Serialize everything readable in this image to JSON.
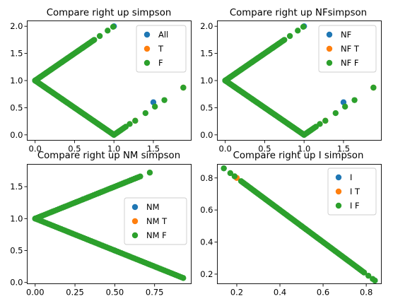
{
  "colors": {
    "c0": "#1f77b4",
    "c1": "#ff7f0e",
    "c2": "#2ca02c"
  },
  "chart_data": [
    {
      "type": "scatter",
      "title": "Compare right up simpson",
      "xlabel": "",
      "ylabel": "",
      "xlim": [
        -0.1,
        1.98
      ],
      "ylim": [
        -0.1,
        2.1
      ],
      "xticks": [
        0.0,
        0.5,
        1.0,
        1.5
      ],
      "xtick_labels": [
        "0.0",
        "0.5",
        "1.0",
        "1.5"
      ],
      "yticks": [
        0.0,
        0.5,
        1.0,
        1.5,
        2.0
      ],
      "ytick_labels": [
        "0.0",
        "0.5",
        "1.0",
        "1.5",
        "2.0"
      ],
      "legend_position": "top-right",
      "series": [
        {
          "name": "All",
          "color": "#1f77b4",
          "points": [
            [
              0.0,
              1.0
            ],
            [
              0.3,
              1.3
            ],
            [
              0.6,
              1.6
            ],
            [
              1.0,
              2.0
            ],
            [
              0.5,
              0.5
            ],
            [
              1.0,
              0.0
            ],
            [
              1.5,
              0.6
            ]
          ]
        },
        {
          "name": "T",
          "color": "#ff7f0e",
          "points": [
            [
              1.27,
              0.26
            ],
            [
              1.88,
              0.87
            ]
          ]
        },
        {
          "name": "F",
          "color": "#2ca02c",
          "segments": [
            {
              "from": [
                0.0,
                1.0
              ],
              "to": [
                0.75,
                1.75
              ],
              "n": 60
            },
            {
              "from": [
                0.0,
                1.0
              ],
              "to": [
                1.0,
                0.0
              ],
              "n": 80
            },
            {
              "from": [
                1.0,
                0.0
              ],
              "to": [
                1.13,
                0.13
              ],
              "n": 10
            }
          ],
          "points": [
            [
              0.82,
              1.82
            ],
            [
              0.92,
              1.92
            ],
            [
              0.99,
              1.99
            ],
            [
              1.15,
              0.15
            ],
            [
              1.2,
              0.2
            ],
            [
              1.27,
              0.26
            ],
            [
              1.4,
              0.4
            ],
            [
              1.52,
              0.52
            ],
            [
              1.64,
              0.64
            ],
            [
              1.88,
              0.87
            ]
          ]
        }
      ]
    },
    {
      "type": "scatter",
      "title": "Compare right up NFsimpson",
      "xlabel": "",
      "ylabel": "",
      "xlim": [
        -0.1,
        1.98
      ],
      "ylim": [
        -0.1,
        2.1
      ],
      "xticks": [
        0.0,
        0.5,
        1.0,
        1.5
      ],
      "xtick_labels": [
        "0.0",
        "0.5",
        "1.0",
        "1.5"
      ],
      "yticks": [
        0.0,
        0.5,
        1.0,
        1.5,
        2.0
      ],
      "ytick_labels": [
        "0.0",
        "0.5",
        "1.0",
        "1.5",
        "2.0"
      ],
      "legend_position": "top-right",
      "series": [
        {
          "name": "NF",
          "color": "#1f77b4",
          "points": [
            [
              0.0,
              1.0
            ],
            [
              0.3,
              1.3
            ],
            [
              0.6,
              1.6
            ],
            [
              1.0,
              2.0
            ],
            [
              0.5,
              0.5
            ],
            [
              1.0,
              0.0
            ],
            [
              1.5,
              0.6
            ]
          ]
        },
        {
          "name": "NF T",
          "color": "#ff7f0e",
          "points": [
            [
              1.27,
              0.26
            ],
            [
              1.88,
              0.87
            ]
          ]
        },
        {
          "name": "NF F",
          "color": "#2ca02c",
          "segments": [
            {
              "from": [
                0.0,
                1.0
              ],
              "to": [
                0.75,
                1.75
              ],
              "n": 60
            },
            {
              "from": [
                0.0,
                1.0
              ],
              "to": [
                1.0,
                0.0
              ],
              "n": 80
            },
            {
              "from": [
                1.0,
                0.0
              ],
              "to": [
                1.13,
                0.13
              ],
              "n": 10
            }
          ],
          "points": [
            [
              0.82,
              1.82
            ],
            [
              0.92,
              1.92
            ],
            [
              0.99,
              1.99
            ],
            [
              1.15,
              0.15
            ],
            [
              1.2,
              0.2
            ],
            [
              1.27,
              0.26
            ],
            [
              1.4,
              0.4
            ],
            [
              1.52,
              0.52
            ],
            [
              1.64,
              0.64
            ],
            [
              1.88,
              0.87
            ]
          ]
        }
      ]
    },
    {
      "type": "scatter",
      "title": "Compare right up NM simpson",
      "xlabel": "",
      "ylabel": "",
      "xlim": [
        -0.05,
        0.98
      ],
      "ylim": [
        -0.02,
        1.85
      ],
      "xticks": [
        0.0,
        0.25,
        0.5,
        0.75
      ],
      "xtick_labels": [
        "0.00",
        "0.25",
        "0.50",
        "0.75"
      ],
      "yticks": [
        0.0,
        0.5,
        1.0,
        1.5
      ],
      "ytick_labels": [
        "0.0",
        "0.5",
        "1.0",
        "1.5"
      ],
      "legend_position": "center-right",
      "series": [
        {
          "name": "NM",
          "color": "#1f77b4",
          "points": [
            [
              0.0,
              1.0
            ],
            [
              0.3,
              1.3
            ],
            [
              0.6,
              1.6
            ],
            [
              0.5,
              0.5
            ]
          ]
        },
        {
          "name": "NM T",
          "color": "#ff7f0e",
          "points": []
        },
        {
          "name": "NM F",
          "color": "#2ca02c",
          "segments": [
            {
              "from": [
                0.0,
                1.0
              ],
              "to": [
                0.66,
                1.66
              ],
              "n": 55
            },
            {
              "from": [
                0.0,
                1.0
              ],
              "to": [
                0.93,
                0.07
              ],
              "n": 80
            }
          ],
          "points": [
            [
              0.72,
              1.72
            ]
          ]
        }
      ]
    },
    {
      "type": "scatter",
      "title": "Compare right up I simpson",
      "xlabel": "",
      "ylabel": "",
      "xlim": [
        0.11,
        0.87
      ],
      "ylim": [
        0.14,
        0.885
      ],
      "xticks": [
        0.2,
        0.4,
        0.6,
        0.8
      ],
      "xtick_labels": [
        "0.2",
        "0.4",
        "0.6",
        "0.8"
      ],
      "yticks": [
        0.2,
        0.4,
        0.6,
        0.8
      ],
      "ytick_labels": [
        "0.2",
        "0.4",
        "0.6",
        "0.8"
      ],
      "legend_position": "top-right",
      "series": [
        {
          "name": "I",
          "color": "#1f77b4",
          "points": [
            [
              0.14,
              0.86
            ],
            [
              0.5,
              0.5
            ],
            [
              0.84,
              0.16
            ]
          ]
        },
        {
          "name": "I T",
          "color": "#ff7f0e",
          "points": [
            [
              0.2,
              0.8
            ]
          ]
        },
        {
          "name": "I F",
          "color": "#2ca02c",
          "segments": [
            {
              "from": [
                0.22,
                0.78
              ],
              "to": [
                0.79,
                0.21
              ],
              "n": 90
            }
          ],
          "points": [
            [
              0.14,
              0.86
            ],
            [
              0.17,
              0.83
            ],
            [
              0.19,
              0.81
            ],
            [
              0.81,
              0.19
            ],
            [
              0.83,
              0.17
            ],
            [
              0.84,
              0.16
            ]
          ]
        }
      ]
    }
  ]
}
